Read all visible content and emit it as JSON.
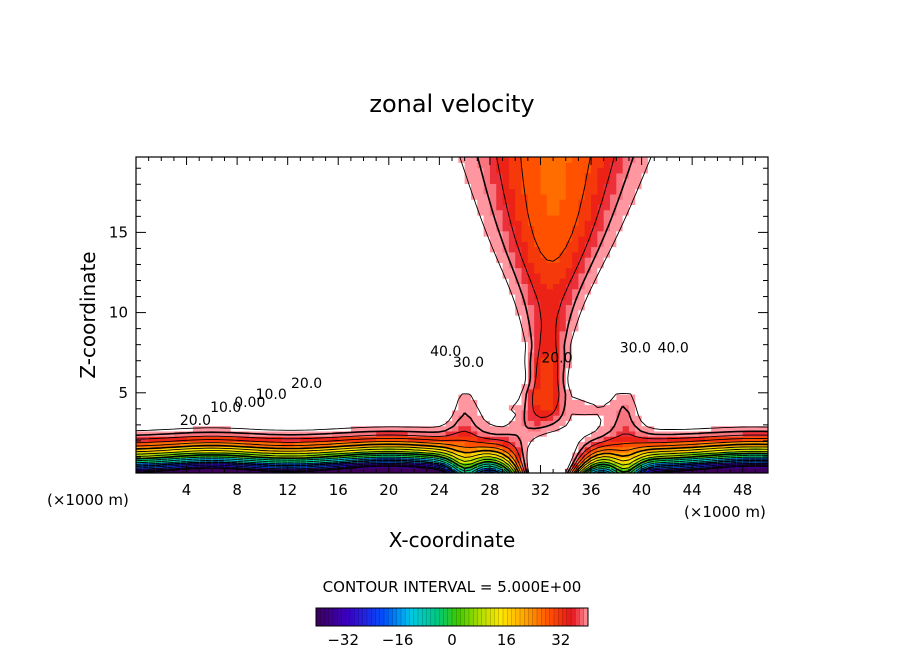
{
  "chart_data": {
    "type": "contour",
    "title": "zonal velocity",
    "xlabel": "X-coordinate",
    "ylabel": "Z-coordinate",
    "x_unit": "(×1000 m)",
    "z_unit": "(×1000 m)",
    "xlim": [
      0,
      50
    ],
    "ylim": [
      0,
      19.7
    ],
    "x_ticks": [
      4,
      8,
      12,
      16,
      20,
      24,
      28,
      32,
      36,
      40,
      44,
      48
    ],
    "y_ticks": [
      5,
      10,
      15
    ],
    "contour_interval_text": "CONTOUR INTERVAL = 5.000E+00",
    "color_range": [
      -40,
      40
    ],
    "colorbar_ticks": [
      -32,
      -16,
      0,
      16,
      32
    ],
    "contour_labels": [
      {
        "text": "40.0",
        "x": 24.5,
        "z": 7.3
      },
      {
        "text": "30.0",
        "x": 26.3,
        "z": 6.6
      },
      {
        "text": "20.0",
        "x": 33.3,
        "z": 6.9
      },
      {
        "text": "30.0",
        "x": 39.5,
        "z": 7.5
      },
      {
        "text": "40.0",
        "x": 42.5,
        "z": 7.5
      },
      {
        "text": "20.0",
        "x": 13.5,
        "z": 5.3
      },
      {
        "text": "10.0",
        "x": 10.7,
        "z": 4.6
      },
      {
        "text": "0.00",
        "x": 9.0,
        "z": 4.1
      },
      {
        "text": "10.0",
        "x": 7.1,
        "z": 3.8
      },
      {
        "text": "20.0",
        "x": 4.7,
        "z": 3.0
      }
    ],
    "features": {
      "jet_max_center": {
        "x": 33,
        "z": 9.5,
        "approx_value": 20
      },
      "background_cutoff_level": 45,
      "negative_minima": [
        {
          "x": 20,
          "z": 0,
          "approx_value": -40
        },
        {
          "x": 49,
          "z": 0,
          "approx_value": -40
        }
      ]
    }
  }
}
